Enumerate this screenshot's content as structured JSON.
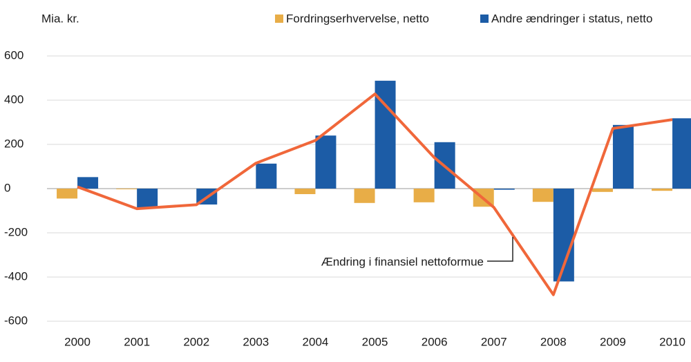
{
  "chart_data": {
    "type": "bar",
    "y_label": "Mia. kr.",
    "categories": [
      "2000",
      "2001",
      "2002",
      "2003",
      "2004",
      "2005",
      "2006",
      "2007",
      "2008",
      "2009",
      "2010"
    ],
    "series": [
      {
        "name": "Fordringserhvervelse, netto",
        "color": "#e8ad47",
        "values": [
          -45,
          -3,
          0,
          0,
          -25,
          -65,
          -62,
          -82,
          -60,
          -15,
          -10
        ]
      },
      {
        "name": "Andre ændringer i status, netto",
        "color": "#1c5ca6",
        "values": [
          52,
          -86,
          -72,
          113,
          240,
          488,
          210,
          -5,
          -420,
          288,
          318
        ]
      },
      {
        "name": "Ændring i finansiel nettoformue",
        "color": "#f0673a",
        "type": "line",
        "values": [
          8,
          -91,
          -73,
          115,
          218,
          428,
          140,
          -85,
          -480,
          272,
          312
        ]
      }
    ],
    "ylim": [
      -600,
      600
    ],
    "yticks": [
      -600,
      -400,
      -200,
      0,
      200,
      400,
      600
    ],
    "grid": true
  }
}
